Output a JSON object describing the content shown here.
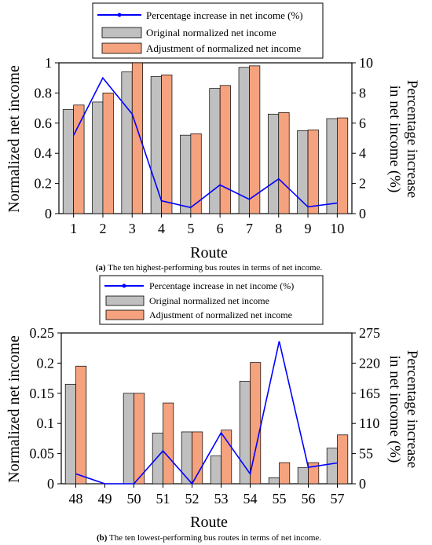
{
  "captions": {
    "a_prefix": "(a)",
    "a_text": " The ten highest-performing bus routes in terms of net income.",
    "b_prefix": "(b)",
    "b_text": " The ten lowest-performing bus routes in terms of net income."
  },
  "legend": {
    "line": "Percentage increase in net income (%)",
    "original": "Original normalized net income",
    "adjusted": "Adjustment of normalized net income"
  },
  "colors": {
    "original": "#c0c0c0",
    "adjusted": "#f5a27f",
    "line": "#0000ff"
  },
  "chart_data": [
    {
      "type": "bar",
      "categories": [
        "1",
        "2",
        "3",
        "4",
        "5",
        "6",
        "7",
        "8",
        "9",
        "10"
      ],
      "xlabel": "Route",
      "ylabel": "Normalized net income",
      "y2label": "Percentage increase in net income (%)",
      "ylim": [
        0,
        1
      ],
      "yticks": [
        "0",
        "0.2",
        "0.4",
        "0.6",
        "0.8",
        "1"
      ],
      "y2lim": [
        0,
        10
      ],
      "y2ticks": [
        "0",
        "2",
        "4",
        "6",
        "8",
        "10"
      ],
      "series": [
        {
          "name": "Original normalized net income",
          "values": [
            0.69,
            0.74,
            0.94,
            0.91,
            0.52,
            0.83,
            0.97,
            0.66,
            0.55,
            0.63
          ]
        },
        {
          "name": "Adjustment of normalized net income",
          "values": [
            0.72,
            0.8,
            1.0,
            0.92,
            0.53,
            0.85,
            0.98,
            0.67,
            0.555,
            0.635
          ]
        },
        {
          "name": "Percentage increase in net income (%)",
          "axis": "right",
          "values": [
            5.2,
            9.0,
            6.6,
            0.85,
            0.4,
            1.9,
            0.95,
            2.3,
            0.45,
            0.7
          ]
        }
      ],
      "grid": false,
      "legend": "top-center"
    },
    {
      "type": "bar",
      "categories": [
        "48",
        "49",
        "50",
        "51",
        "52",
        "53",
        "54",
        "55",
        "56",
        "57"
      ],
      "xlabel": "Route",
      "ylabel": "Normalized net income",
      "y2label": "Percentage increase in net income (%)",
      "ylim": [
        0,
        0.25
      ],
      "yticks": [
        "0",
        "0.05",
        "0.1",
        "0.15",
        "0.2",
        "0.25"
      ],
      "y2lim": [
        0,
        275
      ],
      "y2ticks": [
        "0",
        "55",
        "110",
        "165",
        "220",
        "275"
      ],
      "series": [
        {
          "name": "Original normalized net income",
          "values": [
            0.165,
            0,
            0.15,
            0.084,
            0.086,
            0.046,
            0.17,
            0.01,
            0.027,
            0.059
          ]
        },
        {
          "name": "Adjustment of normalized net income",
          "values": [
            0.195,
            0,
            0.15,
            0.134,
            0.086,
            0.089,
            0.201,
            0.035,
            0.035,
            0.081
          ]
        },
        {
          "name": "Percentage increase in net income (%)",
          "axis": "right",
          "values": [
            18,
            0,
            0,
            60,
            0,
            93,
            18,
            260,
            30,
            38
          ]
        }
      ],
      "grid": false,
      "legend": "top-center"
    }
  ]
}
